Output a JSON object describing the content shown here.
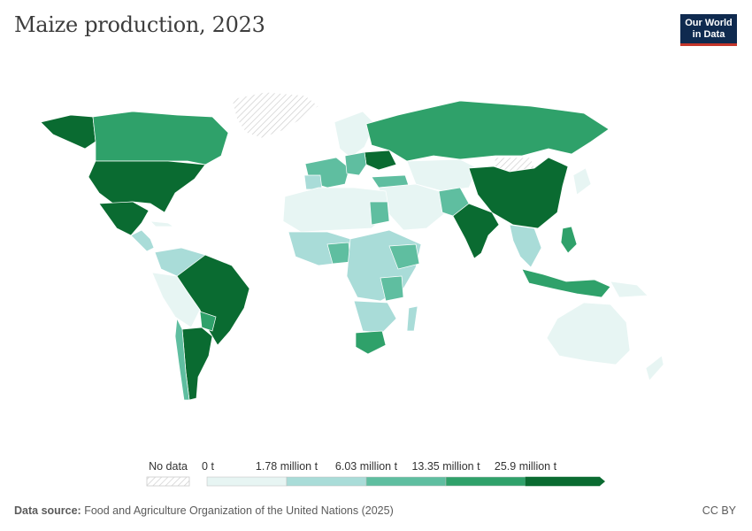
{
  "title": "Maize production, 2023",
  "logo": {
    "line1": "Our World",
    "line2": "in Data"
  },
  "legend": {
    "no_data_label": "No data",
    "tick_labels": [
      "0 t",
      "1.78 million t",
      "6.03 million t",
      "13.35 million t",
      "25.9 million t"
    ],
    "bin_colors": [
      "#e7f5f3",
      "#a9dcd8",
      "#5fbea0",
      "#2fa16a",
      "#0a6b31"
    ],
    "no_data_color": "hatched"
  },
  "footer": {
    "source_label": "Data source:",
    "source_text": "Food and Agriculture Organization of the United Nations (2025)",
    "license": "CC BY"
  },
  "colors": {
    "title": "#3d3d3d",
    "logo_bg": "#0f2a4f",
    "logo_accent": "#c4362b"
  }
}
